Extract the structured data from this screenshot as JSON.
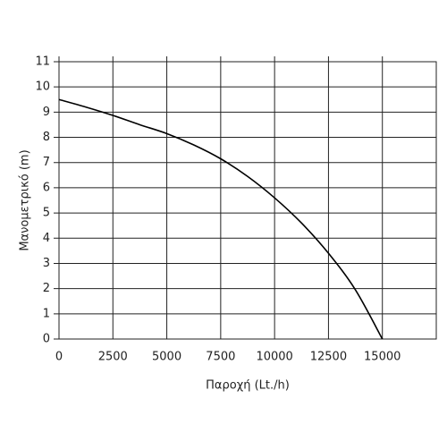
{
  "chart_data": {
    "type": "line",
    "x_label": "Παροχή (Lt./h)",
    "y_label": "Μανομετρικό  (m)",
    "x": [
      0,
      1250,
      2500,
      3750,
      5000,
      6250,
      7500,
      8750,
      10000,
      11250,
      12500,
      13750,
      15000
    ],
    "series": [
      {
        "color": "#000000",
        "values": [
          9.5,
          9.2,
          8.87,
          8.5,
          8.15,
          7.7,
          7.15,
          6.45,
          5.6,
          4.6,
          3.4,
          1.95,
          0
        ]
      }
    ],
    "xlim": [
      0,
      17500
    ],
    "xticks": [
      0,
      2500,
      5000,
      7500,
      10000,
      12500,
      15000
    ],
    "ylim": [
      0,
      11
    ],
    "yticks": [
      0,
      1,
      2,
      3,
      4,
      5,
      6,
      7,
      8,
      9,
      10,
      11
    ],
    "grid": true
  }
}
